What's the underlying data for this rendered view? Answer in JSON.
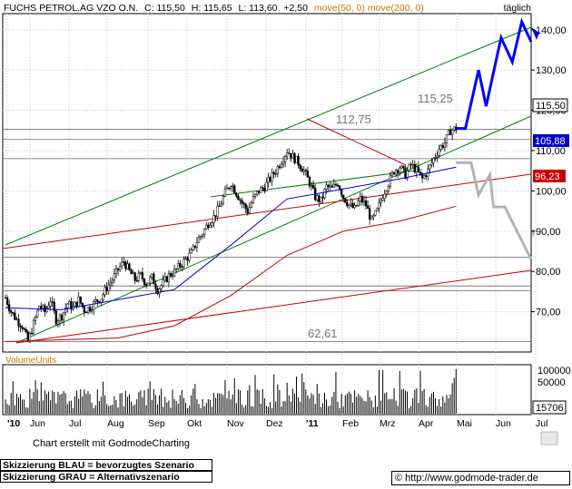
{
  "header": {
    "title": "FUCHS PETROL.AG VZO O.N.",
    "close_label": "C: 115,50",
    "high_label": "H: 115,65",
    "low_label": "L: 113,60",
    "change_label": "+2,50",
    "ma50_label": "move(50, 0)",
    "ma200_label": "move(200, 0)",
    "period": "täglich"
  },
  "colors": {
    "background": "#ffffff",
    "grid": "#c8c8c8",
    "candles": "#000000",
    "ma50": "#0000c8",
    "ma200": "#c80000",
    "trend_green": "#008000",
    "trend_red": "#c80000",
    "scenario_blue": "#0000ff",
    "scenario_gray": "#b4b4b4",
    "moving_avg_label": "#c87800"
  },
  "chart_data": {
    "type": "candlestick",
    "title": "FUCHS PETROL.AG VZO O.N.",
    "ylim": [
      60,
      144
    ],
    "y_ticks": [
      "70,00",
      "80,00",
      "90,00",
      "100,00",
      "110,00",
      "120,00",
      "130,00",
      "140,00"
    ],
    "x_ticks": [
      "'10",
      "Jun",
      "Jul",
      "Aug",
      "Sep",
      "Okt",
      "Nov",
      "Dez",
      "'11",
      "Feb",
      "Mrz",
      "Apr",
      "Mai",
      "Jun",
      "Jul"
    ],
    "grid": true,
    "price_labels": {
      "last": "115,50",
      "ma50": "105,88",
      "ma200": "96,23"
    },
    "annotations": [
      "115,25",
      "112,75",
      "62,61"
    ],
    "horizontal_levels": [
      62.61,
      75.2,
      76.4,
      83.5,
      108.0,
      112.75,
      115.25
    ],
    "close_series": [
      [
        0,
        73.5
      ],
      [
        3,
        70
      ],
      [
        6,
        68
      ],
      [
        9,
        66.5
      ],
      [
        12,
        62.6
      ],
      [
        15,
        67
      ],
      [
        18,
        71.5
      ],
      [
        21,
        70
      ],
      [
        24,
        73
      ],
      [
        27,
        68
      ],
      [
        30,
        69
      ],
      [
        33,
        72
      ],
      [
        36,
        71
      ],
      [
        39,
        73
      ],
      [
        42,
        70.5
      ],
      [
        45,
        71
      ],
      [
        48,
        72.5
      ],
      [
        51,
        73.5
      ],
      [
        54,
        76
      ],
      [
        57,
        78
      ],
      [
        60,
        80.5
      ],
      [
        63,
        82.5
      ],
      [
        66,
        80
      ],
      [
        69,
        78
      ],
      [
        72,
        79
      ],
      [
        75,
        77
      ],
      [
        78,
        78.5
      ],
      [
        81,
        75.5
      ],
      [
        84,
        77
      ],
      [
        87,
        79
      ],
      [
        90,
        80
      ],
      [
        93,
        81.5
      ],
      [
        96,
        83
      ],
      [
        99,
        84.5
      ],
      [
        102,
        87.5
      ],
      [
        105,
        89.5
      ],
      [
        108,
        92
      ],
      [
        111,
        93.5
      ],
      [
        114,
        96
      ],
      [
        117,
        99.5
      ],
      [
        120,
        102
      ],
      [
        123,
        99.5
      ],
      [
        126,
        97
      ],
      [
        129,
        95
      ],
      [
        132,
        98
      ],
      [
        135,
        100
      ],
      [
        138,
        101
      ],
      [
        141,
        103
      ],
      [
        144,
        105
      ],
      [
        147,
        107.5
      ],
      [
        150,
        110
      ],
      [
        153,
        108.5
      ],
      [
        156,
        107
      ],
      [
        159,
        105
      ],
      [
        162,
        102
      ],
      [
        165,
        98.5
      ],
      [
        168,
        97.5
      ],
      [
        171,
        101
      ],
      [
        174,
        100.5
      ],
      [
        177,
        102
      ],
      [
        180,
        98.5
      ],
      [
        183,
        96.5
      ],
      [
        186,
        95.5
      ],
      [
        189,
        98
      ],
      [
        192,
        96.5
      ],
      [
        195,
        92.5
      ],
      [
        198,
        95
      ],
      [
        201,
        99
      ],
      [
        204,
        102
      ],
      [
        207,
        105
      ],
      [
        210,
        106
      ],
      [
        213,
        104
      ],
      [
        216,
        106.5
      ],
      [
        219,
        105
      ],
      [
        222,
        103
      ],
      [
        225,
        105
      ],
      [
        228,
        108
      ],
      [
        231,
        110.5
      ],
      [
        234,
        112
      ],
      [
        237,
        115
      ],
      [
        240,
        115.5
      ]
    ],
    "ma50_series": [
      [
        0,
        71
      ],
      [
        30,
        70.5
      ],
      [
        60,
        73
      ],
      [
        90,
        75.5
      ],
      [
        120,
        86.5
      ],
      [
        150,
        98
      ],
      [
        180,
        100.5
      ],
      [
        210,
        103
      ],
      [
        240,
        105.9
      ]
    ],
    "ma200_series": [
      [
        0,
        62.6
      ],
      [
        60,
        63.5
      ],
      [
        90,
        66.5
      ],
      [
        120,
        74
      ],
      [
        150,
        84
      ],
      [
        180,
        90
      ],
      [
        210,
        92.5
      ],
      [
        240,
        96.2
      ]
    ],
    "scenario_blue": [
      [
        240,
        115.5
      ],
      [
        245,
        115.5
      ],
      [
        252,
        130
      ],
      [
        256,
        121
      ],
      [
        264,
        138
      ],
      [
        270,
        132
      ],
      [
        275,
        142
      ],
      [
        280,
        137
      ]
    ],
    "scenario_gray": [
      [
        240,
        107
      ],
      [
        248,
        107
      ],
      [
        252,
        99
      ],
      [
        258,
        104
      ],
      [
        260,
        96
      ],
      [
        266,
        96
      ],
      [
        280,
        83
      ]
    ],
    "volume": {
      "label": "VolumeUnits",
      "y_ticks": [
        "100000",
        "50000"
      ],
      "last_label": "15706"
    }
  },
  "footer": {
    "credit": "Chart erstellt mit GodmodeCharting",
    "blue_note": "Skizzierung BLAU = bevorzugtes Szenario",
    "gray_note": "Skizzierung GRAU = Alternativszenario",
    "copyright": "© http://www.godmode-trader.de"
  }
}
